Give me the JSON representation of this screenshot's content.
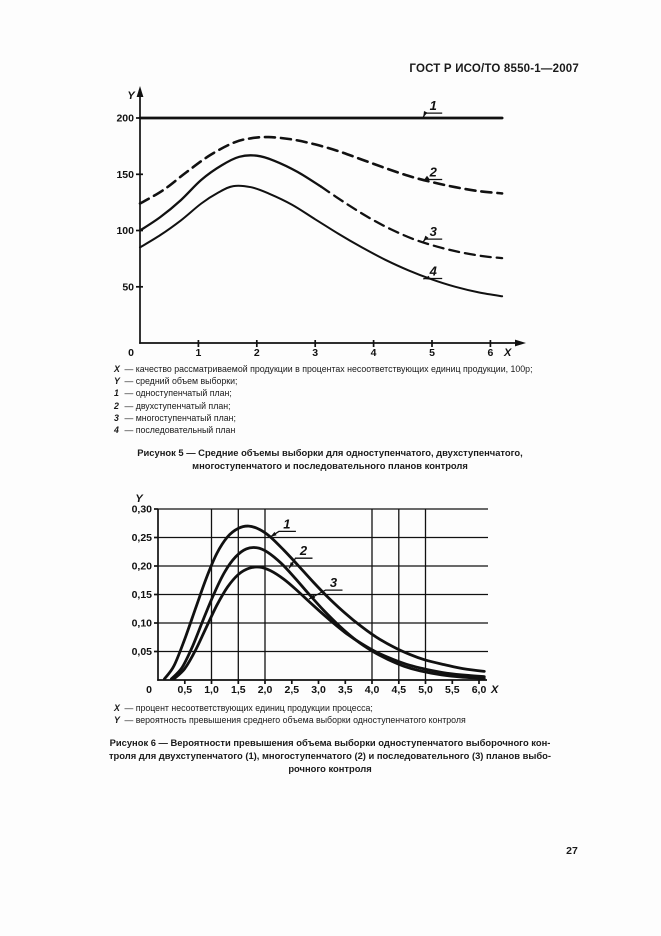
{
  "header": {
    "title": "ГОСТ Р ИСО/ТО 8550-1—2007"
  },
  "page_number": "27",
  "fig5": {
    "legend": [
      {
        "sym": "X",
        "text": "— качество рассматриваемой продукции в процентах несоответствующих единиц продукции, 100p;"
      },
      {
        "sym": "Y",
        "text": "— средний объем выборки;"
      },
      {
        "sym": "1",
        "text": "— одноступенчатый план;"
      },
      {
        "sym": "2",
        "text": "— двухступенчатый план;"
      },
      {
        "sym": "3",
        "text": "— многоступенчатый план;"
      },
      {
        "sym": "4",
        "text": "— последовательный план"
      }
    ],
    "caption_lines": [
      "Рисунок 5 — Средние объемы выборки для одноступенчатого, двухступенчатого,",
      "многоступенчатого и последовательного планов контроля"
    ]
  },
  "fig6": {
    "legend": [
      {
        "sym": "X",
        "text": "— процент несоответствующих единиц продукции процесса;"
      },
      {
        "sym": "Y",
        "text": "— вероятность превышения среднего объема выборки одноступенчатого контроля"
      }
    ],
    "caption_lines": [
      "Рисунок 6 — Вероятности превышения объема выборки одноступенчатого выборочного кон-",
      "троля для двухступенчатого (1), многоступенчатого (2) и последовательного (3) планов выбо-",
      "рочного контроля"
    ]
  },
  "chart_data": [
    {
      "type": "line",
      "title": "Рисунок 5 — Средние объемы выборки для одноступенчатого, двухступенчатого, многоступенчатого и последовательного планов контроля",
      "xlabel": "X",
      "ylabel": "Y",
      "xlim": [
        0,
        6.6
      ],
      "ylim": [
        0,
        222
      ],
      "grid": false,
      "x_ticks": [
        1,
        2,
        3,
        4,
        5,
        6
      ],
      "x_tick_labels": [
        "1",
        "2",
        "3",
        "4",
        "5",
        "6"
      ],
      "y_ticks": [
        50,
        100,
        150,
        200
      ],
      "y_tick_labels": [
        "50",
        "100",
        "150",
        "200"
      ],
      "origin_label": "0",
      "series": [
        {
          "label": "1",
          "name": "одноступенчатый план",
          "width": 2.8,
          "dash": null,
          "points": [
            [
              0,
              200
            ],
            [
              3,
              200
            ],
            [
              6.2,
              200
            ]
          ]
        },
        {
          "label": "2",
          "name": "двухступенчатый план",
          "width": 2.6,
          "dash": "10,6",
          "points": [
            [
              0,
              124
            ],
            [
              0.4,
              136
            ],
            [
              0.8,
              152
            ],
            [
              1.2,
              167
            ],
            [
              1.6,
              178
            ],
            [
              1.9,
              182
            ],
            [
              2.2,
              183
            ],
            [
              2.6,
              181
            ],
            [
              3.0,
              176.5
            ],
            [
              3.4,
              170.5
            ],
            [
              3.8,
              163
            ],
            [
              4.2,
              155.5
            ],
            [
              4.6,
              148.5
            ],
            [
              5.0,
              143
            ],
            [
              5.4,
              138.5
            ],
            [
              5.8,
              135
            ],
            [
              6.2,
              133
            ]
          ]
        },
        {
          "label": "3",
          "name": "многоступенчатый план",
          "width": 2.3,
          "dash": "10,6",
          "dash_from": 3.1,
          "points": [
            [
              0,
              100
            ],
            [
              0.35,
              112
            ],
            [
              0.7,
              127
            ],
            [
              1.05,
              145
            ],
            [
              1.4,
              158
            ],
            [
              1.7,
              165.5
            ],
            [
              2.0,
              166.5
            ],
            [
              2.3,
              162
            ],
            [
              2.7,
              152
            ],
            [
              3.1,
              139
            ],
            [
              3.5,
              125
            ],
            [
              3.9,
              112
            ],
            [
              4.3,
              101
            ],
            [
              4.7,
              92
            ],
            [
              5.1,
              85.5
            ],
            [
              5.5,
              80.5
            ],
            [
              5.9,
              77
            ],
            [
              6.2,
              75.5
            ]
          ]
        },
        {
          "label": "4",
          "name": "последовательный план",
          "width": 2.0,
          "dash": null,
          "points": [
            [
              0,
              85
            ],
            [
              0.35,
              96
            ],
            [
              0.7,
              109
            ],
            [
              1.05,
              124
            ],
            [
              1.35,
              134
            ],
            [
              1.6,
              139.5
            ],
            [
              1.9,
              138.5
            ],
            [
              2.2,
              133
            ],
            [
              2.6,
              123
            ],
            [
              3.0,
              110
            ],
            [
              3.4,
              97
            ],
            [
              3.8,
              85
            ],
            [
              4.2,
              74
            ],
            [
              4.6,
              64.5
            ],
            [
              5.0,
              56.5
            ],
            [
              5.4,
              50
            ],
            [
              5.8,
              45
            ],
            [
              6.2,
              41.5
            ]
          ]
        }
      ],
      "curve_labels": [
        {
          "text": "1",
          "at": [
            5.02,
            207
          ],
          "tip": [
            4.85,
            200.5
          ]
        },
        {
          "text": "2",
          "at": [
            5.02,
            148
          ],
          "tip": [
            4.85,
            144
          ]
        },
        {
          "text": "3",
          "at": [
            5.02,
            95
          ],
          "tip": [
            4.85,
            90
          ]
        },
        {
          "text": "4",
          "at": [
            5.02,
            60
          ],
          "tip": [
            4.85,
            57
          ]
        }
      ]
    },
    {
      "type": "line",
      "title": "Рисунок 6 — Вероятности превышения объема выборки одноступенчатого выборочного контроля для двухступенчатого (1), многоступенчатого (2) и последовательного (3) планов выборочного контроля",
      "xlabel": "X",
      "ylabel": "Y",
      "xlim": [
        0,
        6.3
      ],
      "ylim": [
        0,
        0.3
      ],
      "grid": true,
      "grid_x": [
        1,
        1.5,
        2,
        4,
        4.5,
        5
      ],
      "grid_y": [
        0.05,
        0.1,
        0.15,
        0.2,
        0.25,
        0.3
      ],
      "x_ticks": [
        0.5,
        1,
        1.5,
        2,
        2.5,
        3,
        3.5,
        4,
        4.5,
        5,
        5.5,
        6
      ],
      "x_tick_labels": [
        "0,5",
        "1,0",
        "1,5",
        "2,0",
        "2,5",
        "3,0",
        "3,5",
        "4,0",
        "4,5",
        "5,0",
        "5,5",
        "6,0"
      ],
      "y_ticks": [
        0.05,
        0.1,
        0.15,
        0.2,
        0.25,
        0.3
      ],
      "y_tick_labels": [
        "0,05",
        "0,10",
        "0,15",
        "0,20",
        "0,25",
        "0,30"
      ],
      "origin_label": "0",
      "series": [
        {
          "label": "1",
          "name": "двухступенчатый план",
          "width": 2.8,
          "dash": null,
          "points": [
            [
              0.12,
              0.002
            ],
            [
              0.3,
              0.025
            ],
            [
              0.5,
              0.072
            ],
            [
              0.7,
              0.125
            ],
            [
              0.9,
              0.178
            ],
            [
              1.1,
              0.222
            ],
            [
              1.3,
              0.251
            ],
            [
              1.5,
              0.266
            ],
            [
              1.7,
              0.27
            ],
            [
              1.9,
              0.264
            ],
            [
              2.1,
              0.251
            ],
            [
              2.35,
              0.228
            ],
            [
              2.6,
              0.203
            ],
            [
              2.9,
              0.172
            ],
            [
              3.2,
              0.143
            ],
            [
              3.5,
              0.117
            ],
            [
              3.8,
              0.094
            ],
            [
              4.1,
              0.074
            ],
            [
              4.4,
              0.058
            ],
            [
              4.7,
              0.045
            ],
            [
              5.0,
              0.035
            ],
            [
              5.35,
              0.027
            ],
            [
              5.7,
              0.02
            ],
            [
              6.1,
              0.015
            ]
          ]
        },
        {
          "label": "2",
          "name": "многоступенчатый план",
          "width": 2.8,
          "dash": null,
          "points": [
            [
              0.25,
              0.002
            ],
            [
              0.45,
              0.022
            ],
            [
              0.65,
              0.06
            ],
            [
              0.85,
              0.107
            ],
            [
              1.05,
              0.152
            ],
            [
              1.25,
              0.19
            ],
            [
              1.45,
              0.216
            ],
            [
              1.65,
              0.23
            ],
            [
              1.85,
              0.232
            ],
            [
              2.05,
              0.224
            ],
            [
              2.3,
              0.205
            ],
            [
              2.55,
              0.18
            ],
            [
              2.8,
              0.153
            ],
            [
              3.1,
              0.122
            ],
            [
              3.4,
              0.094
            ],
            [
              3.7,
              0.07
            ],
            [
              4.0,
              0.051
            ],
            [
              4.3,
              0.036
            ],
            [
              4.6,
              0.024
            ],
            [
              4.9,
              0.016
            ],
            [
              5.3,
              0.009
            ],
            [
              5.7,
              0.005
            ],
            [
              6.1,
              0.003
            ]
          ]
        },
        {
          "label": "3",
          "name": "последовательный план",
          "width": 2.8,
          "dash": null,
          "points": [
            [
              0.3,
              0.002
            ],
            [
              0.5,
              0.02
            ],
            [
              0.7,
              0.052
            ],
            [
              0.9,
              0.092
            ],
            [
              1.1,
              0.131
            ],
            [
              1.3,
              0.163
            ],
            [
              1.5,
              0.185
            ],
            [
              1.7,
              0.196
            ],
            [
              1.9,
              0.198
            ],
            [
              2.1,
              0.192
            ],
            [
              2.35,
              0.177
            ],
            [
              2.6,
              0.157
            ],
            [
              2.9,
              0.131
            ],
            [
              3.2,
              0.106
            ],
            [
              3.5,
              0.083
            ],
            [
              3.8,
              0.064
            ],
            [
              4.1,
              0.048
            ],
            [
              4.4,
              0.036
            ],
            [
              4.7,
              0.026
            ],
            [
              5.0,
              0.019
            ],
            [
              5.4,
              0.012
            ],
            [
              5.8,
              0.008
            ],
            [
              6.1,
              0.006
            ]
          ]
        }
      ],
      "curve_labels": [
        {
          "text": "1",
          "at": [
            2.41,
            0.266
          ],
          "tip": [
            2.1,
            0.251
          ]
        },
        {
          "text": "2",
          "at": [
            2.72,
            0.219
          ],
          "tip": [
            2.45,
            0.196
          ]
        },
        {
          "text": "3",
          "at": [
            3.28,
            0.163
          ],
          "tip": [
            2.82,
            0.142
          ]
        }
      ]
    }
  ]
}
